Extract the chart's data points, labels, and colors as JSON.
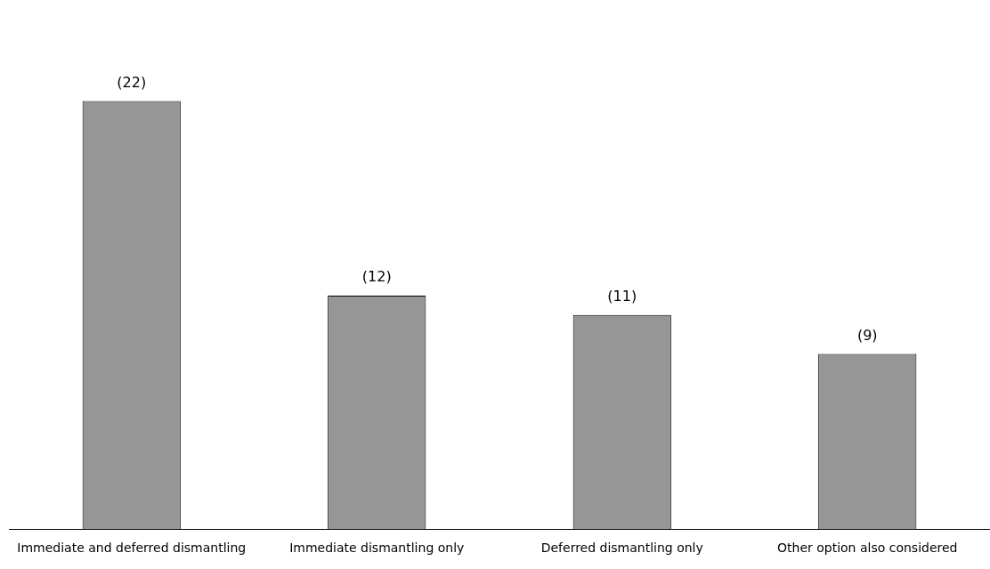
{
  "chart_data": {
    "type": "bar",
    "categories": [
      "Immediate and deferred dismantling",
      "Immediate dismantling only",
      "Deferred dismantling only",
      "Other option also considered"
    ],
    "values": [
      22,
      12,
      11,
      9
    ],
    "value_labels": [
      "(22)",
      "(12)",
      "(11)",
      "(9)"
    ],
    "color": "#969696",
    "grid": false,
    "legend": false
  }
}
